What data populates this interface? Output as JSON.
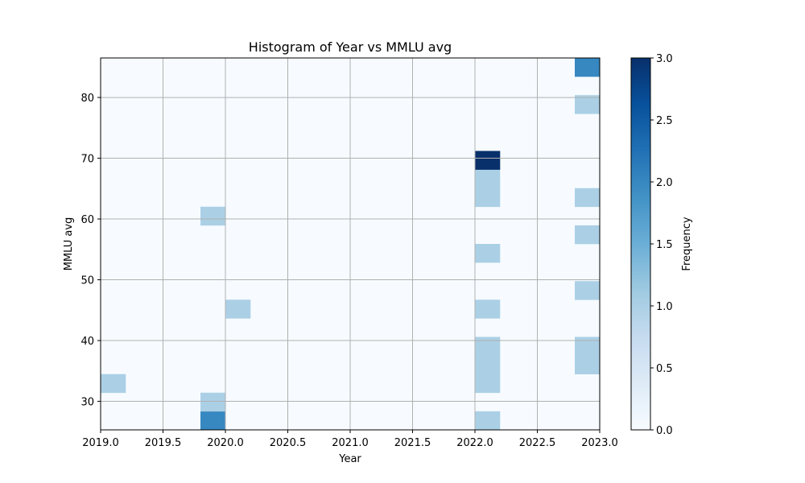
{
  "chart_data": {
    "type": "heatmap",
    "title": "Histogram of Year vs MMLU avg",
    "xlabel": "Year",
    "ylabel": "MMLU avg",
    "colorbar_label": "Frequency",
    "colormap": "Blues",
    "xlim": [
      2019.0,
      2023.0
    ],
    "ylim": [
      25.3,
      86.5
    ],
    "x_bins": 20,
    "y_bins": 20,
    "grid": true,
    "x_ticks": [
      "2019.0",
      "2019.5",
      "2020.0",
      "2020.5",
      "2021.0",
      "2021.5",
      "2022.0",
      "2022.5",
      "2023.0"
    ],
    "y_ticks": [
      "30",
      "40",
      "50",
      "60",
      "70",
      "80"
    ],
    "colorbar_range": [
      0.0,
      3.0
    ],
    "colorbar_ticks": [
      "0.0",
      "0.5",
      "1.0",
      "1.5",
      "2.0",
      "2.5",
      "3.0"
    ],
    "cells": [
      {
        "x_bin": 0,
        "y_bin": 2,
        "count": 1
      },
      {
        "x_bin": 4,
        "y_bin": 0,
        "count": 2
      },
      {
        "x_bin": 4,
        "y_bin": 1,
        "count": 1
      },
      {
        "x_bin": 4,
        "y_bin": 11,
        "count": 1
      },
      {
        "x_bin": 5,
        "y_bin": 6,
        "count": 1
      },
      {
        "x_bin": 15,
        "y_bin": 0,
        "count": 1
      },
      {
        "x_bin": 15,
        "y_bin": 2,
        "count": 1
      },
      {
        "x_bin": 15,
        "y_bin": 3,
        "count": 1
      },
      {
        "x_bin": 15,
        "y_bin": 4,
        "count": 1
      },
      {
        "x_bin": 15,
        "y_bin": 6,
        "count": 1
      },
      {
        "x_bin": 15,
        "y_bin": 9,
        "count": 1
      },
      {
        "x_bin": 15,
        "y_bin": 12,
        "count": 1
      },
      {
        "x_bin": 15,
        "y_bin": 13,
        "count": 1
      },
      {
        "x_bin": 15,
        "y_bin": 14,
        "count": 3
      },
      {
        "x_bin": 19,
        "y_bin": 3,
        "count": 1
      },
      {
        "x_bin": 19,
        "y_bin": 4,
        "count": 1
      },
      {
        "x_bin": 19,
        "y_bin": 7,
        "count": 1
      },
      {
        "x_bin": 19,
        "y_bin": 10,
        "count": 1
      },
      {
        "x_bin": 19,
        "y_bin": 12,
        "count": 1
      },
      {
        "x_bin": 19,
        "y_bin": 17,
        "count": 1
      },
      {
        "x_bin": 19,
        "y_bin": 19,
        "count": 2
      }
    ]
  }
}
